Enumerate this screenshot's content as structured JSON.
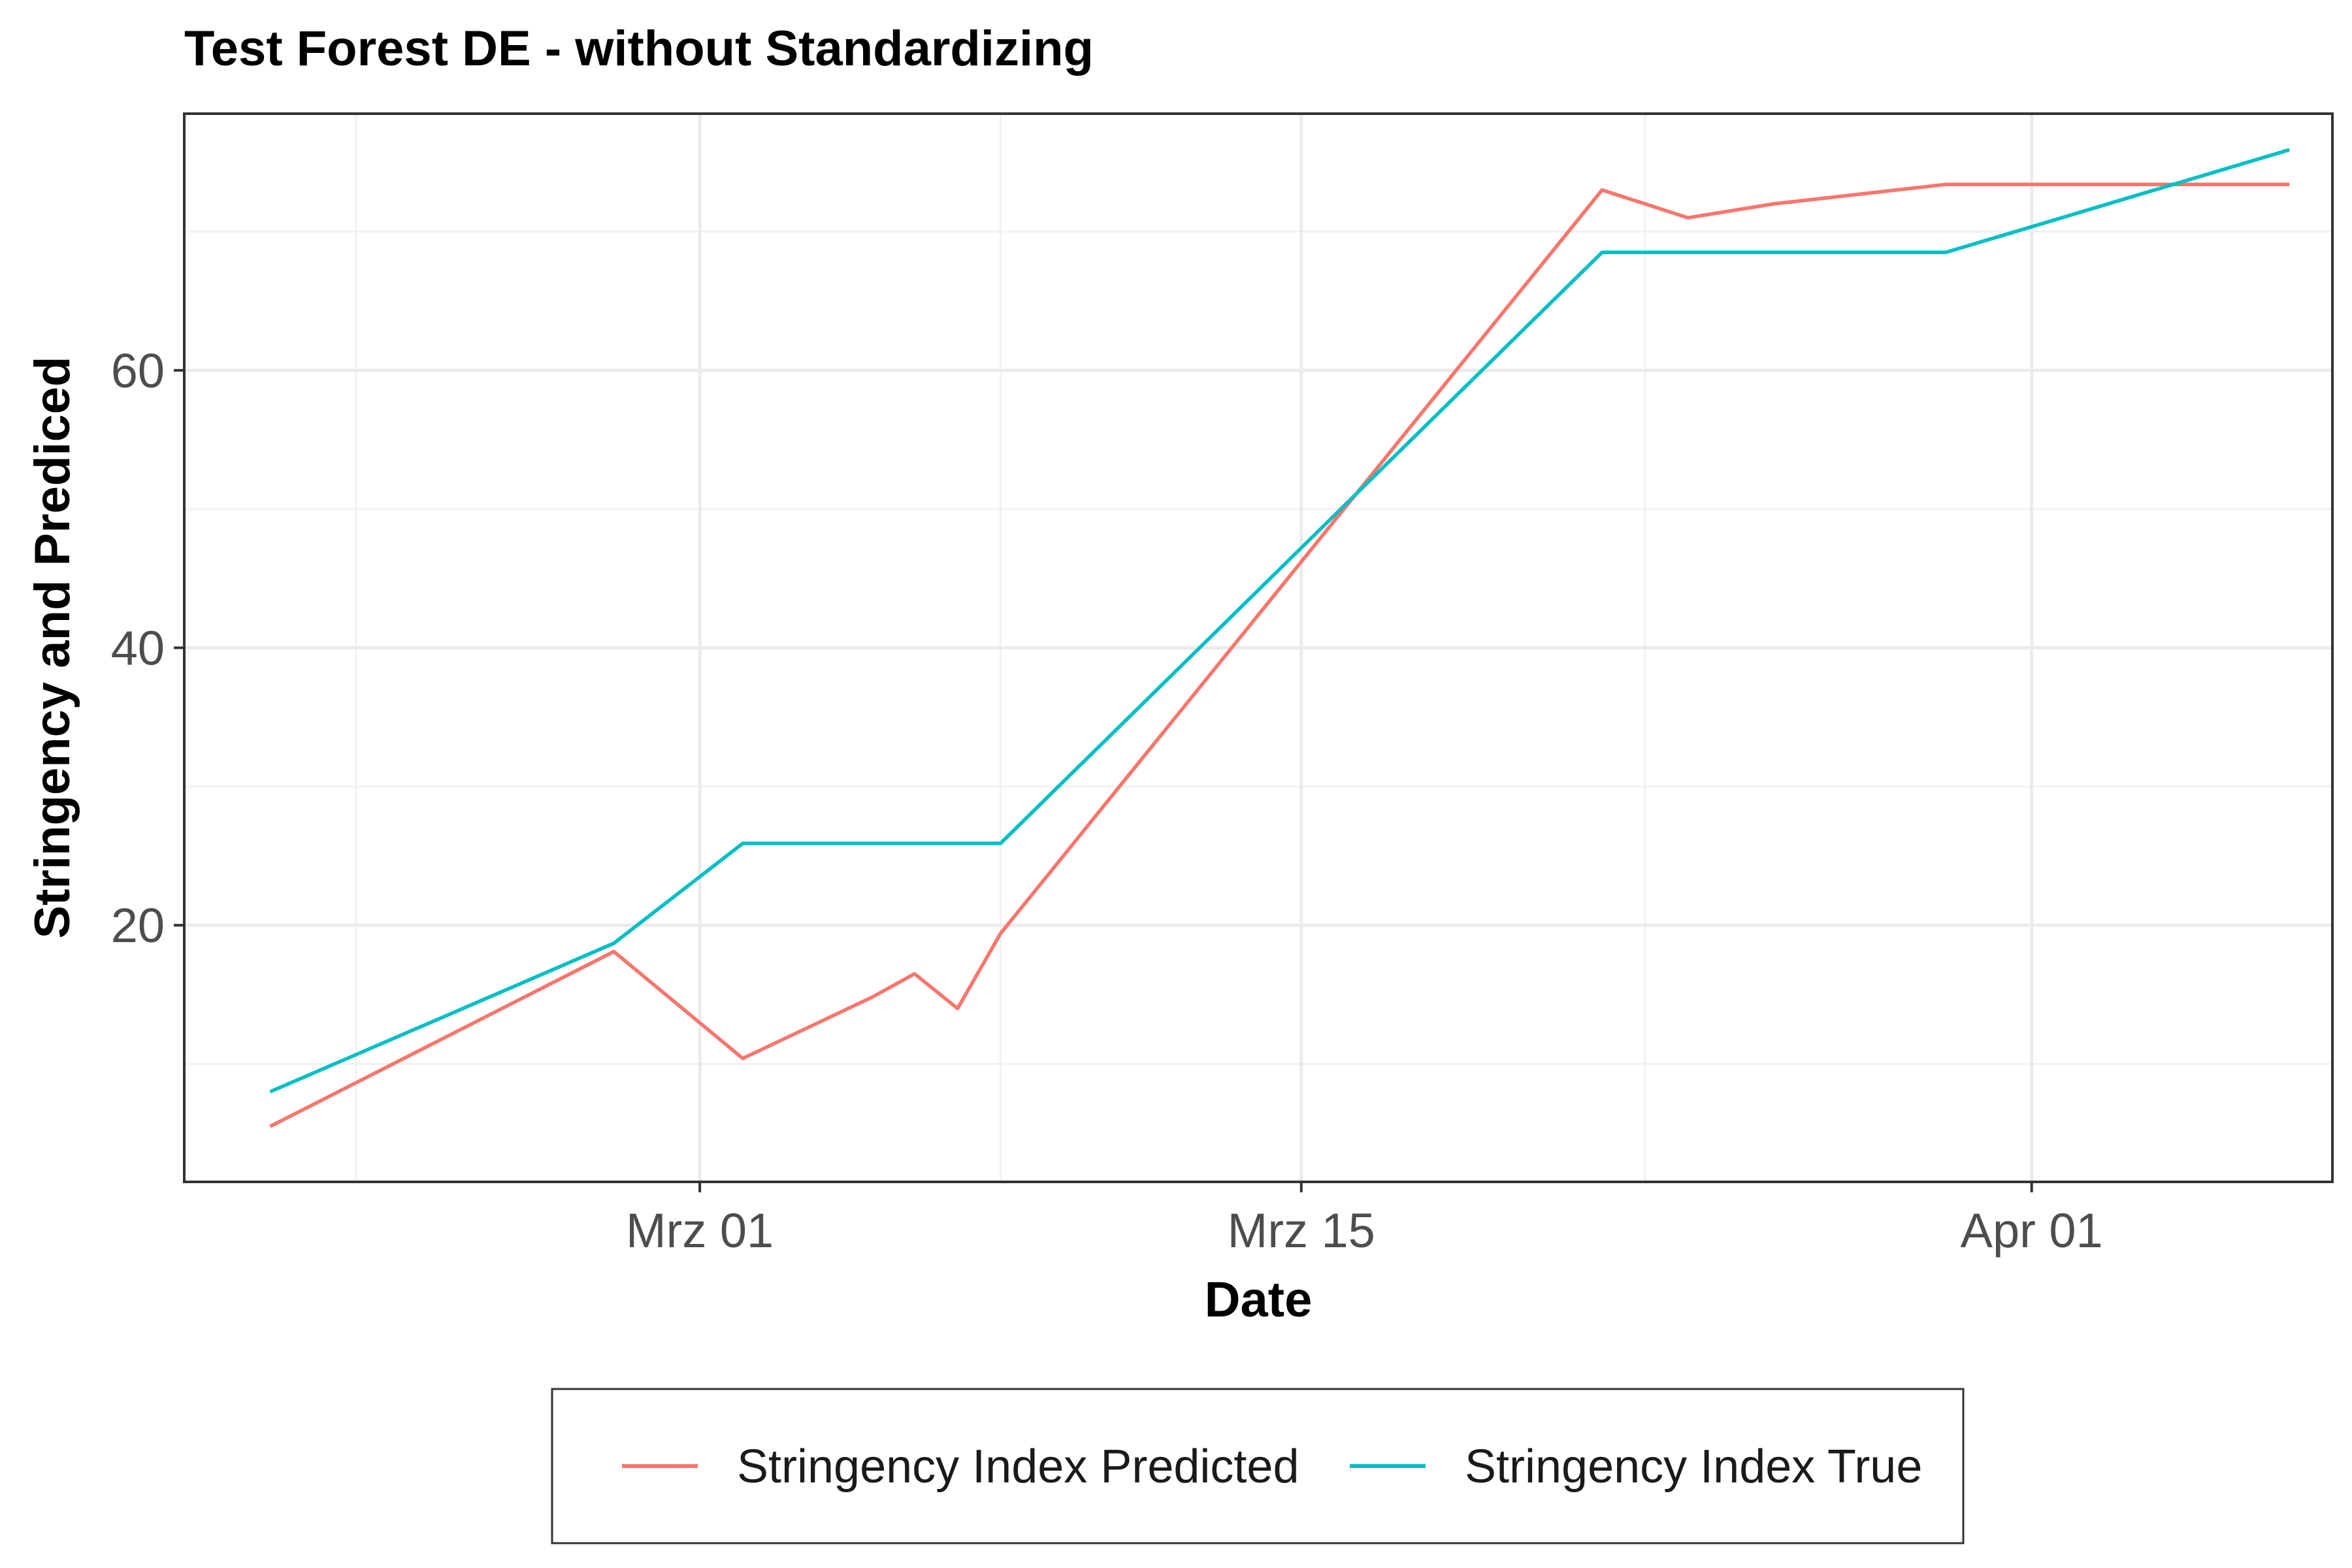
{
  "chart_data": {
    "type": "line",
    "title": "Test Forest DE - without Standardizing",
    "xlabel": "Date",
    "ylabel": "Stringency and Prediced",
    "x_type": "date",
    "xlim": [
      "2020-02-18",
      "2020-04-08"
    ],
    "ylim": [
      1.5,
      78.5
    ],
    "x_ticks": [
      {
        "date": "2020-03-01",
        "label": "Mrz 01"
      },
      {
        "date": "2020-03-15",
        "label": "Mrz 15"
      },
      {
        "date": "2020-04-01",
        "label": "Apr 01"
      }
    ],
    "x_minor_ticks": [
      "2020-02-22",
      "2020-03-08",
      "2020-03-23"
    ],
    "y_ticks": [
      20,
      40,
      60
    ],
    "y_minor_ticks": [
      10,
      30,
      50,
      70
    ],
    "grid": true,
    "legend_position": "bottom",
    "series": [
      {
        "name": "Stringency Index Predicted",
        "color": "#F8766D",
        "points": [
          {
            "x": "2020-02-20",
            "y": 5.5
          },
          {
            "x": "2020-02-28",
            "y": 18.1
          },
          {
            "x": "2020-03-02",
            "y": 10.4
          },
          {
            "x": "2020-03-05",
            "y": 14.8
          },
          {
            "x": "2020-03-06",
            "y": 16.5
          },
          {
            "x": "2020-03-07",
            "y": 14.0
          },
          {
            "x": "2020-03-08",
            "y": 19.4
          },
          {
            "x": "2020-03-22",
            "y": 73.0
          },
          {
            "x": "2020-03-24",
            "y": 71.0
          },
          {
            "x": "2020-03-26",
            "y": 72.0
          },
          {
            "x": "2020-03-30",
            "y": 73.4
          },
          {
            "x": "2020-04-03",
            "y": 73.4
          },
          {
            "x": "2020-04-07",
            "y": 73.4
          }
        ]
      },
      {
        "name": "Stringency Index True",
        "color": "#00BFC4",
        "points": [
          {
            "x": "2020-02-20",
            "y": 8.0
          },
          {
            "x": "2020-02-28",
            "y": 18.7
          },
          {
            "x": "2020-03-02",
            "y": 25.9
          },
          {
            "x": "2020-03-08",
            "y": 25.9
          },
          {
            "x": "2020-03-22",
            "y": 68.5
          },
          {
            "x": "2020-03-30",
            "y": 68.5
          },
          {
            "x": "2020-04-07",
            "y": 75.9
          }
        ]
      }
    ]
  }
}
